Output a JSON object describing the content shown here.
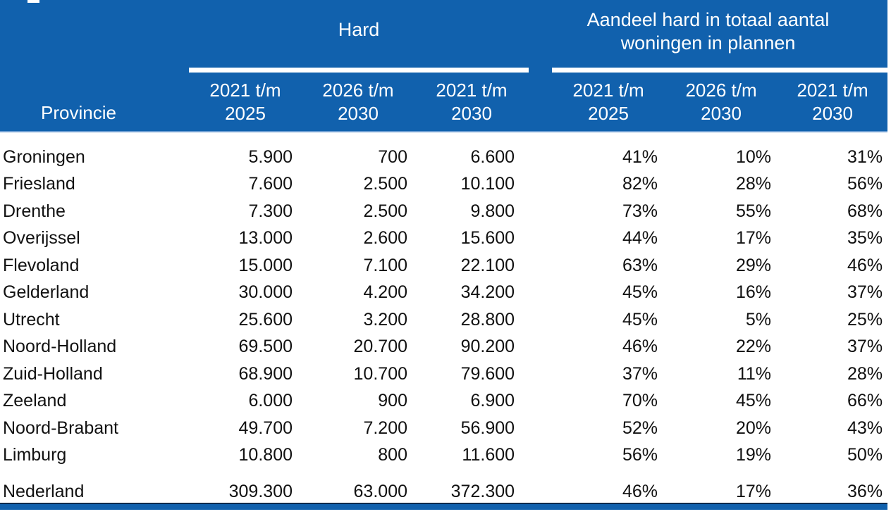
{
  "header": {
    "notch": "window-edge-artifact"
  },
  "colors": {
    "header_blue": "#1161AD",
    "bottom_bar_blue": "#1161AD",
    "bottom_bar_top_edge": "#0A2A4D",
    "header_text": "#FFFFFF",
    "body_text": "#111111",
    "underline_white": "#FFFFFF"
  },
  "chart_data": {
    "type": "table",
    "title": "",
    "column_groups": [
      {
        "label": "Hard",
        "span": 3
      },
      {
        "label": "Aandeel hard in totaal aantal woningen in plannen",
        "span": 3
      }
    ],
    "province_header": "Provincie",
    "period_headers": [
      "2021 t/m\n2025",
      "2026 t/m\n2030",
      "2021 t/m\n2030",
      "2021 t/m\n2025",
      "2026 t/m\n2030",
      "2021 t/m\n2030"
    ],
    "rows": [
      {
        "province": "Groningen",
        "values": [
          "5.900",
          "700",
          "6.600",
          "41%",
          "10%",
          "31%"
        ]
      },
      {
        "province": "Friesland",
        "values": [
          "7.600",
          "2.500",
          "10.100",
          "82%",
          "28%",
          "56%"
        ]
      },
      {
        "province": "Drenthe",
        "values": [
          "7.300",
          "2.500",
          "9.800",
          "73%",
          "55%",
          "68%"
        ]
      },
      {
        "province": "Overijssel",
        "values": [
          "13.000",
          "2.600",
          "15.600",
          "44%",
          "17%",
          "35%"
        ]
      },
      {
        "province": "Flevoland",
        "values": [
          "15.000",
          "7.100",
          "22.100",
          "63%",
          "29%",
          "46%"
        ]
      },
      {
        "province": "Gelderland",
        "values": [
          "30.000",
          "4.200",
          "34.200",
          "45%",
          "16%",
          "37%"
        ]
      },
      {
        "province": "Utrecht",
        "values": [
          "25.600",
          "3.200",
          "28.800",
          "45%",
          "5%",
          "25%"
        ]
      },
      {
        "province": "Noord-Holland",
        "values": [
          "69.500",
          "20.700",
          "90.200",
          "46%",
          "22%",
          "37%"
        ]
      },
      {
        "province": "Zuid-Holland",
        "values": [
          "68.900",
          "10.700",
          "79.600",
          "37%",
          "11%",
          "28%"
        ]
      },
      {
        "province": "Zeeland",
        "values": [
          "6.000",
          "900",
          "6.900",
          "70%",
          "45%",
          "66%"
        ]
      },
      {
        "province": "Noord-Brabant",
        "values": [
          "49.700",
          "7.200",
          "56.900",
          "52%",
          "20%",
          "43%"
        ]
      },
      {
        "province": "Limburg",
        "values": [
          "10.800",
          "800",
          "11.600",
          "56%",
          "19%",
          "50%"
        ]
      }
    ],
    "total_row": {
      "province": "Nederland",
      "values": [
        "309.300",
        "63.000",
        "372.300",
        "46%",
        "17%",
        "36%"
      ]
    }
  }
}
